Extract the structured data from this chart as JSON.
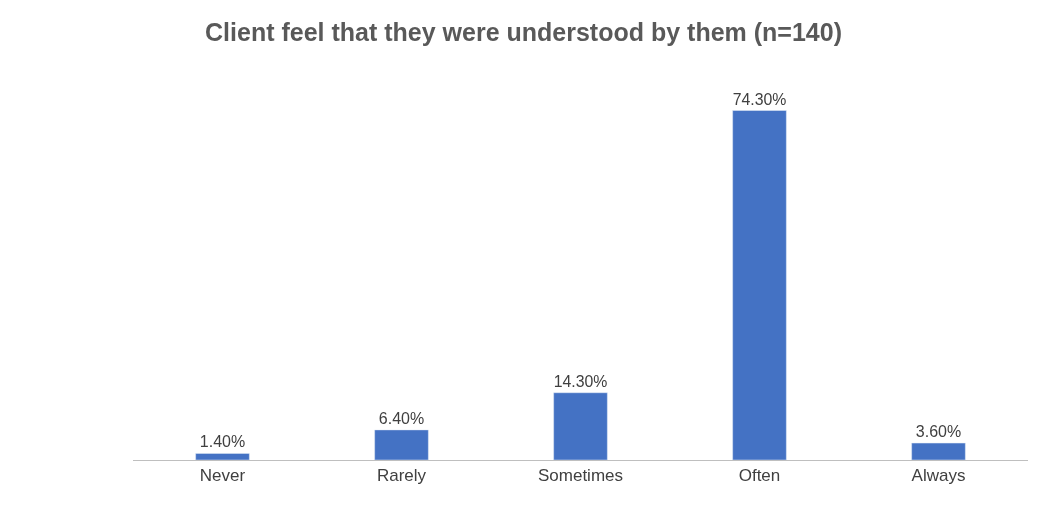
{
  "chart_data": {
    "type": "bar",
    "title": "Client feel that they were understood by them (n=140)",
    "categories": [
      "Never",
      "Rarely",
      "Sometimes",
      "Often",
      "Always"
    ],
    "values": [
      1.4,
      6.4,
      14.3,
      74.3,
      3.6
    ],
    "value_labels": [
      "1.40%",
      "6.40%",
      "14.30%",
      "74.30%",
      "3.60%"
    ],
    "color": "#4472c4",
    "tick_labels": "x"
  }
}
